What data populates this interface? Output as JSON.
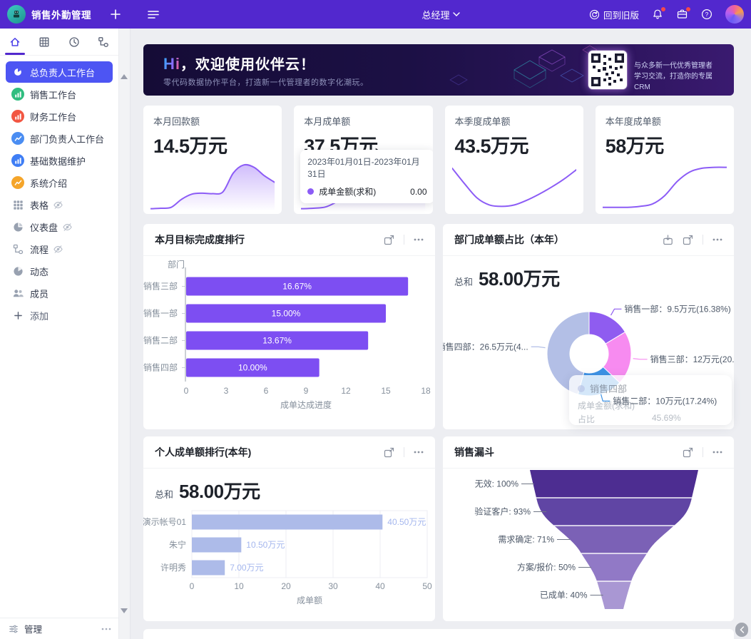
{
  "topbar": {
    "app_title": "销售外勤管理",
    "role": "总经理",
    "back_label": "回到旧版"
  },
  "sidebar": {
    "tabs": [
      {
        "icon": "home-icon",
        "active": true
      },
      {
        "icon": "table-tab-icon",
        "active": false
      },
      {
        "icon": "clock-tab-icon",
        "active": false
      },
      {
        "icon": "flow-tab-icon",
        "active": false
      }
    ],
    "items": [
      {
        "label": "总负责人工作台",
        "icon": "pie-chart-icon",
        "selected": true
      },
      {
        "label": "销售工作台",
        "icon": "bar-chart-icon",
        "icon_bg": "#2fbd7f"
      },
      {
        "label": "财务工作台",
        "icon": "bar-chart-icon",
        "icon_bg": "#f25642"
      },
      {
        "label": "部门负责人工作台",
        "icon": "line-chart-icon",
        "icon_bg": "#4a8df2"
      },
      {
        "label": "基础数据维护",
        "icon": "bar-chart-icon",
        "icon_bg": "#3f7ef5"
      },
      {
        "label": "系统介绍",
        "icon": "line-chart-icon",
        "icon_bg": "#f5a52a"
      },
      {
        "label": "表格",
        "icon": "grid-icon",
        "gray": true,
        "hidden_eye": true
      },
      {
        "label": "仪表盘",
        "icon": "gauge-icon",
        "gray": true,
        "hidden_eye": true
      },
      {
        "label": "流程",
        "icon": "flow-icon",
        "gray": true,
        "hidden_eye": true
      },
      {
        "label": "动态",
        "icon": "activity-icon",
        "gray": true
      },
      {
        "label": "成员",
        "icon": "members-icon",
        "gray": true
      }
    ],
    "add_label": "添加",
    "manage_label": "管理"
  },
  "banner": {
    "hi": "Hi",
    "title": "，欢迎使用伙伴云！",
    "subtitle": "零代码数据协作平台，打造新一代管理者的数字化潮玩。",
    "qr_line1": "与众多新一代优秀管理者",
    "qr_line2": "学习交流，打造你的专属CRM"
  },
  "stat_cards": [
    {
      "label": "本月回款额",
      "value": "14.5万元",
      "area": true,
      "trend": [
        0.02,
        0.03,
        0.05,
        0.22,
        0.33,
        0.35,
        0.34,
        0.38,
        0.78,
        0.95,
        0.9,
        0.72,
        0.58
      ]
    },
    {
      "label": "本月成单额",
      "value": "37.5万元",
      "area": true,
      "trend": [
        0.02,
        0.03,
        0.06,
        0.18,
        0.3,
        0.34,
        0.33,
        0.28,
        0.27,
        0.5,
        0.97
      ],
      "tooltip": {
        "date_range": "2023年01月01日-2023年01月31日",
        "series": "成单金额(求和)",
        "value": "0.00"
      }
    },
    {
      "label": "本季度成单额",
      "value": "43.5万元",
      "area": false,
      "trend": [
        0.88,
        0.55,
        0.25,
        0.1,
        0.07,
        0.1,
        0.2,
        0.33,
        0.48,
        0.65,
        0.85
      ]
    },
    {
      "label": "本年度成单额",
      "value": "58万元",
      "area": false,
      "trend": [
        0.05,
        0.05,
        0.05,
        0.07,
        0.12,
        0.3,
        0.6,
        0.8,
        0.88,
        0.9,
        0.9
      ]
    }
  ],
  "chart_data": [
    {
      "id": "goal_ranking",
      "type": "bar",
      "orientation": "horizontal",
      "title": "本月目标完成度排行",
      "categories": [
        "销售三部",
        "销售一部",
        "销售二部",
        "销售四部"
      ],
      "values": [
        16.67,
        15.0,
        13.67,
        10.0
      ],
      "value_labels": [
        "16.67%",
        "15.00%",
        "13.67%",
        "10.00%"
      ],
      "xticks": [
        "0",
        "3",
        "6",
        "9",
        "12",
        "15",
        "18"
      ],
      "xlim": [
        0,
        18
      ],
      "xlabel": "成单达成进度",
      "ylabel": "部门",
      "bar_color": "#7d4ef2"
    },
    {
      "id": "dept_share",
      "type": "pie",
      "title": "部门成单额占比（本年）",
      "total_label": "总和",
      "total_value": "58.00万元",
      "slices": [
        {
          "name": "销售一部",
          "value": 9.5,
          "pct": 16.38,
          "color": "#8f5cf0",
          "label": "销售一部：9.5万元(16.38%)"
        },
        {
          "name": "销售三部",
          "value": 12,
          "pct": 20.69,
          "color": "#f78bf0",
          "label": "销售三部：12万元(20...."
        },
        {
          "name": "销售二部",
          "value": 10,
          "pct": 17.24,
          "color": "#3d92e5",
          "label": "销售二部：10万元(17.24%)"
        },
        {
          "name": "销售四部",
          "value": 26.5,
          "pct": 45.69,
          "color": "#b3bfe6",
          "label": "销售四部：26.5万元(4..."
        }
      ],
      "tooltip": {
        "title": "销售四部",
        "rows": [
          {
            "label": "成单金额(求和)",
            "value": ""
          },
          {
            "label": "占比",
            "value": "45.69%"
          }
        ]
      }
    },
    {
      "id": "personal_ranking",
      "type": "bar",
      "orientation": "horizontal",
      "title": "个人成单额排行(本年)",
      "total_label": "总和",
      "total_value": "58.00万元",
      "categories": [
        "演示帐号01",
        "朱宁",
        "许明秀"
      ],
      "values": [
        40.5,
        10.5,
        7.0
      ],
      "value_labels": [
        "40.50万元",
        "10.50万元",
        "7.00万元"
      ],
      "xticks": [
        "0",
        "10",
        "20",
        "30",
        "40",
        "50"
      ],
      "xlim": [
        0,
        50
      ],
      "xlabel": "成单额",
      "bar_color": "#adbbe9",
      "label_color": "#a5b7ee"
    },
    {
      "id": "sales_funnel",
      "type": "funnel",
      "title": "销售漏斗",
      "stages": [
        {
          "label": "无效: 100%",
          "pct": 100,
          "color": "#4d2d91"
        },
        {
          "label": "验证客户: 93%",
          "pct": 93,
          "color": "#6045a4"
        },
        {
          "label": "需求确定: 71%",
          "pct": 71,
          "color": "#7b61b6"
        },
        {
          "label": "方案/报价: 50%",
          "pct": 50,
          "color": "#9179c6"
        },
        {
          "label": "已成单: 40%",
          "pct": 40,
          "color": "#a997d3"
        }
      ]
    }
  ]
}
